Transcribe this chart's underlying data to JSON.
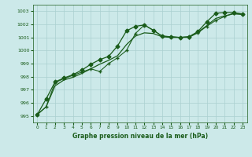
{
  "title": "Graphe pression niveau de la mer (hPa)",
  "background_color": "#cce9e9",
  "grid_color": "#aad0d0",
  "line_color": "#1a5c1a",
  "xlim": [
    -0.5,
    23.5
  ],
  "ylim": [
    994.5,
    1003.5
  ],
  "yticks": [
    995,
    996,
    997,
    998,
    999,
    1000,
    1001,
    1002,
    1003
  ],
  "xticks": [
    0,
    1,
    2,
    3,
    4,
    5,
    6,
    7,
    8,
    9,
    10,
    11,
    12,
    13,
    14,
    15,
    16,
    17,
    18,
    19,
    20,
    21,
    22,
    23
  ],
  "series1_x": [
    0,
    1,
    2,
    3,
    4,
    5,
    6,
    7,
    8,
    9,
    10,
    11,
    12,
    13,
    14,
    15,
    16,
    17,
    18,
    19,
    20,
    21,
    22,
    23
  ],
  "series1_y": [
    995.1,
    996.3,
    997.6,
    997.9,
    998.15,
    998.5,
    998.95,
    999.3,
    999.55,
    1000.35,
    1001.5,
    1001.85,
    1001.95,
    1001.55,
    1001.1,
    1001.05,
    1001.0,
    1001.05,
    1001.45,
    1002.2,
    1002.85,
    1002.9,
    1002.9,
    1002.8
  ],
  "series2_x": [
    0,
    1,
    2,
    3,
    4,
    5,
    6,
    7,
    8,
    9,
    10,
    11,
    12,
    13,
    14,
    15,
    16,
    17,
    18,
    19,
    20,
    21,
    22,
    23
  ],
  "series2_y": [
    995.1,
    995.7,
    997.3,
    997.75,
    997.95,
    998.25,
    998.6,
    998.95,
    999.25,
    999.6,
    1000.45,
    1001.1,
    1001.35,
    1001.3,
    1001.05,
    1001.0,
    1001.0,
    1001.05,
    1001.4,
    1001.9,
    1002.45,
    1002.65,
    1002.8,
    1002.75
  ],
  "series3_x": [
    0,
    1,
    2,
    3,
    4,
    5,
    6,
    7,
    8,
    9,
    10,
    11,
    12,
    13,
    14,
    15,
    16,
    17,
    18,
    19,
    20,
    21,
    22,
    23
  ],
  "series3_y": [
    995.1,
    995.7,
    997.55,
    997.85,
    998.1,
    998.35,
    998.6,
    998.4,
    999.0,
    999.45,
    1000.0,
    1001.3,
    1001.95,
    1001.55,
    1001.1,
    1001.05,
    1001.0,
    1001.0,
    1001.35,
    1001.85,
    1002.3,
    1002.6,
    1002.85,
    1002.8
  ],
  "marker_size": 2.5,
  "linewidth": 0.9
}
